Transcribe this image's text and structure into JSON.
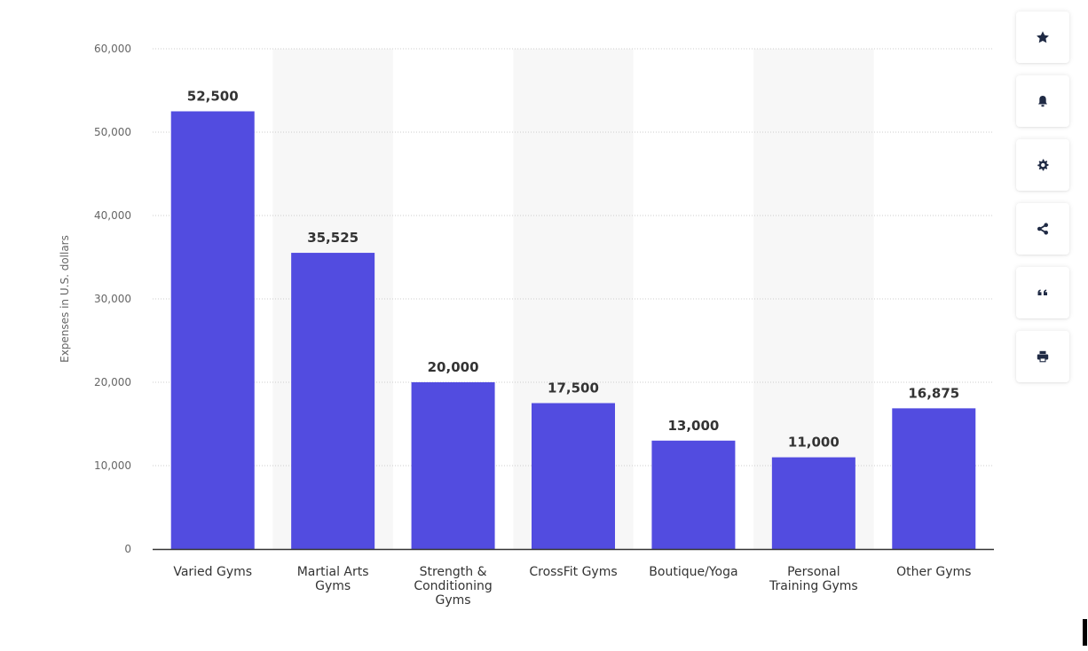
{
  "chart_data": {
    "type": "bar",
    "categories": [
      "Varied Gyms",
      "Martial Arts Gyms",
      "Strength & Conditioning Gyms",
      "CrossFit Gyms",
      "Boutique/Yoga",
      "Personal Training Gyms",
      "Other Gyms"
    ],
    "category_label_lines": [
      [
        "Varied Gyms"
      ],
      [
        "Martial Arts",
        "Gyms"
      ],
      [
        "Strength &",
        "Conditioning",
        "Gyms"
      ],
      [
        "CrossFit Gyms"
      ],
      [
        "Boutique/Yoga"
      ],
      [
        "Personal",
        "Training Gyms"
      ],
      [
        "Other Gyms"
      ]
    ],
    "values": [
      52500,
      35525,
      20000,
      17500,
      13000,
      11000,
      16875
    ],
    "data_labels": [
      "52,500",
      "35,525",
      "20,000",
      "17,500",
      "13,000",
      "11,000",
      "16,875"
    ],
    "ylabel": "Expenses in U.S. dollars",
    "ylim": [
      0,
      60000
    ],
    "yticks": [
      0,
      10000,
      20000,
      30000,
      40000,
      50000,
      60000
    ],
    "ytick_labels": [
      "0",
      "10,000",
      "20,000",
      "30,000",
      "40,000",
      "50,000",
      "60,000"
    ],
    "grid": true,
    "alternating_column_bands": true,
    "colors": {
      "bar": "#524ce0",
      "band": "#f7f7f7",
      "grid": "#cccccc",
      "axis": "#333333"
    }
  },
  "toolbar": {
    "buttons": [
      {
        "name": "favorite-button",
        "icon": "star-icon"
      },
      {
        "name": "notification-button",
        "icon": "bell-icon"
      },
      {
        "name": "settings-button",
        "icon": "gear-icon"
      },
      {
        "name": "share-button",
        "icon": "share-icon"
      },
      {
        "name": "cite-button",
        "icon": "quote-icon"
      },
      {
        "name": "print-button",
        "icon": "printer-icon"
      }
    ]
  }
}
